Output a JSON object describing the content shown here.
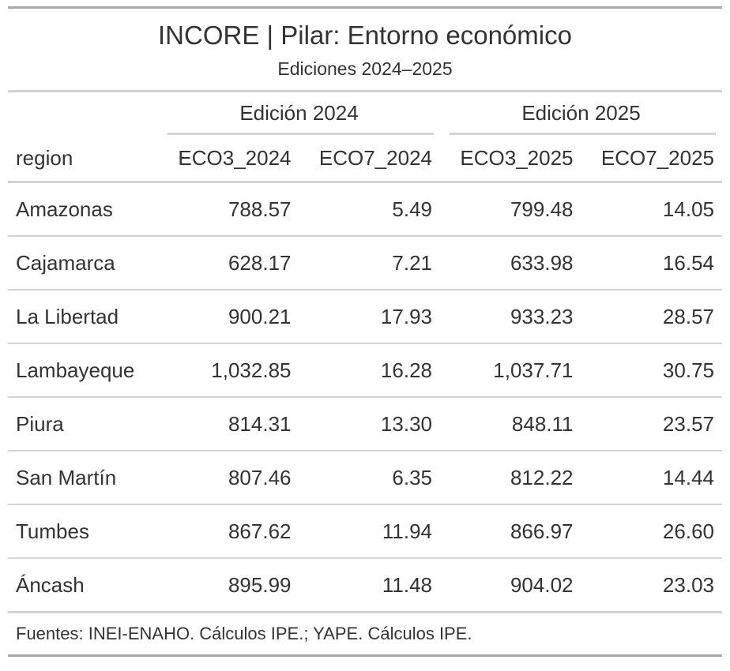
{
  "table": {
    "title": "INCORE | Pilar: Entorno económico",
    "subtitle": "Ediciones 2024–2025",
    "spanners": [
      "Edición 2024",
      "Edición 2025"
    ],
    "columns": [
      "region",
      "ECO3_2024",
      "ECO7_2024",
      "ECO3_2025",
      "ECO7_2025"
    ],
    "rows": [
      [
        "Amazonas",
        "788.57",
        "5.49",
        "799.48",
        "14.05"
      ],
      [
        "Cajamarca",
        "628.17",
        "7.21",
        "633.98",
        "16.54"
      ],
      [
        "La Libertad",
        "900.21",
        "17.93",
        "933.23",
        "28.57"
      ],
      [
        "Lambayeque",
        "1,032.85",
        "16.28",
        "1,037.71",
        "30.75"
      ],
      [
        "Piura",
        "814.31",
        "13.30",
        "848.11",
        "23.57"
      ],
      [
        "San Martín",
        "807.46",
        "6.35",
        "812.22",
        "14.44"
      ],
      [
        "Tumbes",
        "867.62",
        "11.94",
        "866.97",
        "26.60"
      ],
      [
        "Áncash",
        "895.99",
        "11.48",
        "904.02",
        "23.03"
      ]
    ],
    "footer": "Fuentes: INEI-ENAHO. Cálculos IPE.; YAPE. Cálculos IPE."
  }
}
